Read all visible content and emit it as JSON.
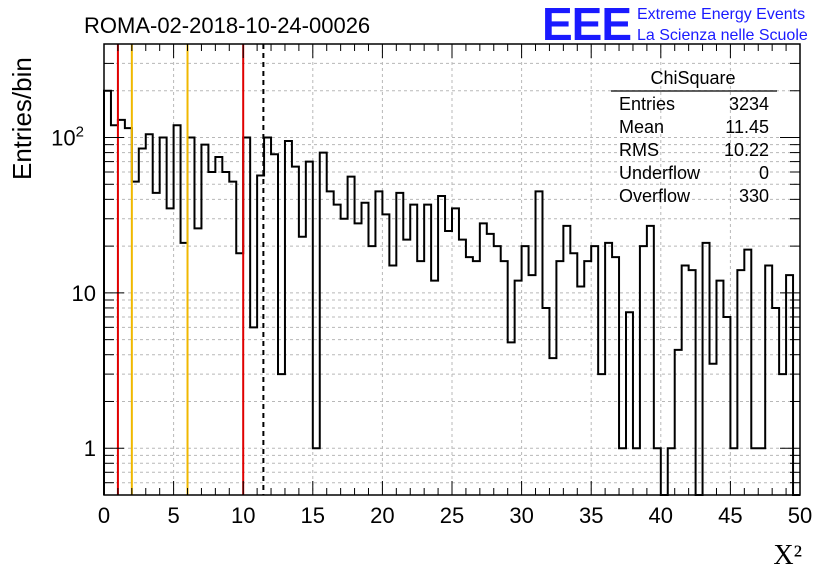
{
  "chart_data": {
    "type": "bar",
    "title": "ROMA-02-2018-10-24-00026",
    "xlabel": "X²",
    "ylabel": "Entries/bin",
    "x_range": [
      0,
      50
    ],
    "ylim": [
      0.5,
      400
    ],
    "y_scale": "log",
    "grid": true,
    "bin_width": 0.5,
    "x_ticks": [
      "0",
      "5",
      "10",
      "15",
      "20",
      "25",
      "30",
      "35",
      "40",
      "45",
      "50"
    ],
    "y_ticks": [
      {
        "value": 1,
        "label": "1"
      },
      {
        "value": 10,
        "label": "10"
      },
      {
        "value": 100,
        "label": "10",
        "exponent": "2"
      }
    ],
    "values": [
      200,
      120,
      130,
      115,
      52,
      85,
      105,
      44,
      100,
      35,
      120,
      21,
      100,
      26,
      90,
      60,
      75,
      60,
      52,
      18,
      100,
      6,
      57,
      100,
      78,
      3,
      95,
      65,
      23,
      70,
      1,
      80,
      45,
      37,
      30,
      56,
      28,
      38,
      20,
      45,
      32,
      15,
      44,
      22,
      37,
      16,
      37,
      12,
      42,
      25,
      35,
      22,
      17,
      16,
      28,
      24,
      20,
      16,
      4.8,
      12,
      20,
      13,
      45,
      8,
      3.8,
      16,
      27,
      18,
      11,
      16,
      20,
      3,
      21,
      17,
      1,
      7.5,
      1,
      20,
      27,
      1,
      0.5,
      1,
      4.3,
      15,
      14,
      0.5,
      21,
      3.5,
      12,
      7,
      1,
      14,
      19,
      1,
      1,
      15,
      8,
      3,
      13,
      0.5
    ],
    "vertical_lines": [
      {
        "x": 1,
        "color": "#e00000",
        "style": "solid"
      },
      {
        "x": 2,
        "color": "#f0b800",
        "style": "solid"
      },
      {
        "x": 6,
        "color": "#f0b800",
        "style": "solid"
      },
      {
        "x": 10,
        "color": "#e00000",
        "style": "solid"
      },
      {
        "x": 11.45,
        "color": "#000000",
        "style": "dashed"
      }
    ],
    "stats_box": {
      "title": "ChiSquare",
      "rows": [
        {
          "label": "Entries",
          "value": "3234"
        },
        {
          "label": "Mean",
          "value": "11.45"
        },
        {
          "label": "RMS",
          "value": "10.22"
        },
        {
          "label": "Underflow",
          "value": "0"
        },
        {
          "label": "Overflow",
          "value": "330"
        }
      ]
    }
  },
  "logo": {
    "mark": "EEE",
    "line1": "Extreme Energy Events",
    "line2": "La Scienza nelle Scuole",
    "color": "#1a1aff"
  }
}
